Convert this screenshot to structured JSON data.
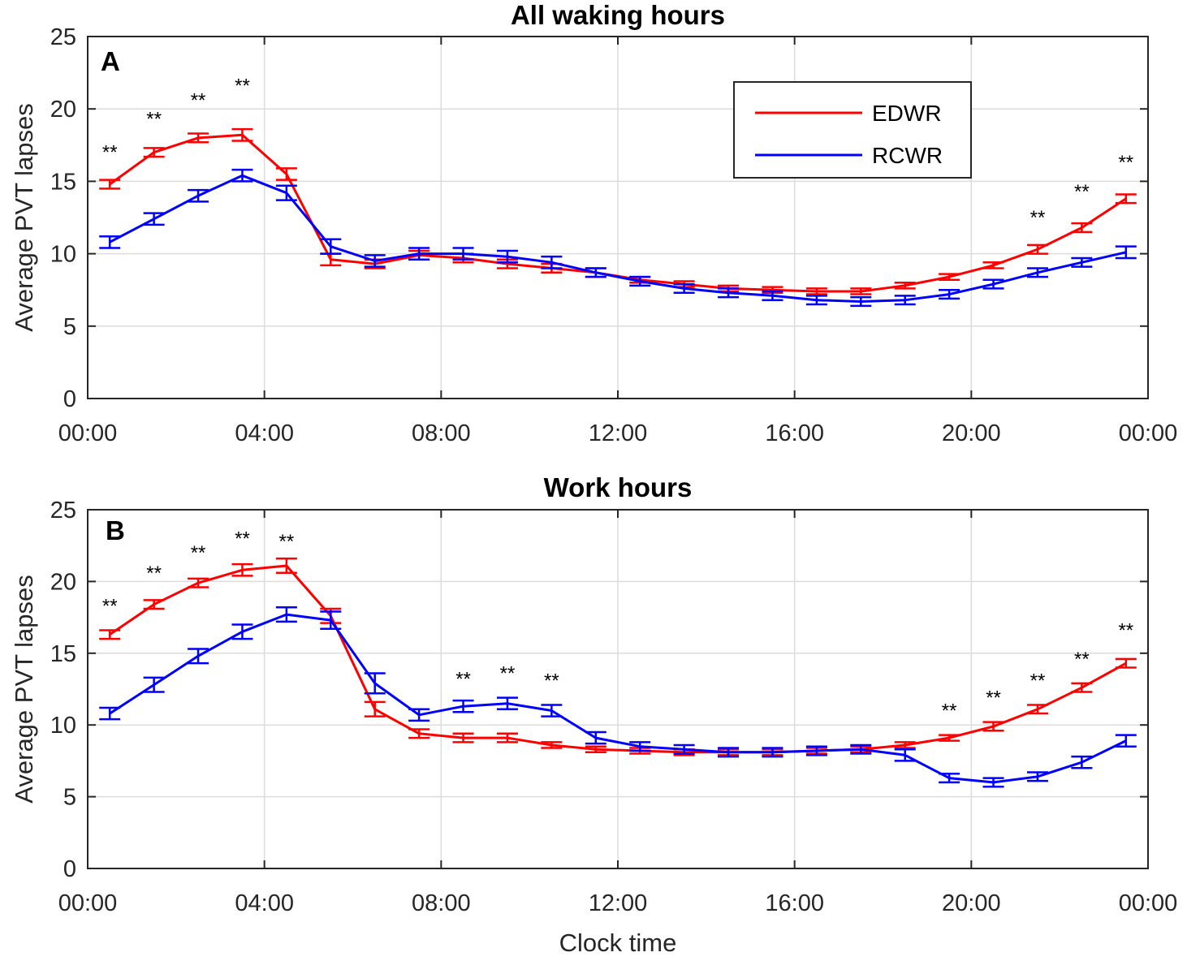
{
  "chart_data": [
    {
      "type": "line",
      "title": "All waking hours",
      "panel_label": "A",
      "ylabel": "Average PVT lapses",
      "xlabel": "",
      "ylim": [
        0,
        25
      ],
      "yticks": [
        0,
        5,
        10,
        15,
        20,
        25
      ],
      "xlim": [
        0,
        24
      ],
      "xticks": [
        0,
        4,
        8,
        12,
        16,
        20,
        24
      ],
      "xtick_labels": [
        "00:00",
        "04:00",
        "08:00",
        "12:00",
        "16:00",
        "20:00",
        "00:00"
      ],
      "grid": true,
      "legend_position": "top-right",
      "x": [
        0.5,
        1.5,
        2.5,
        3.5,
        4.5,
        5.5,
        6.5,
        7.5,
        8.5,
        9.5,
        10.5,
        11.5,
        12.5,
        13.5,
        14.5,
        15.5,
        16.5,
        17.5,
        18.5,
        19.5,
        20.5,
        21.5,
        22.5,
        23.5
      ],
      "series": [
        {
          "name": "EDWR",
          "color": "#ff0000",
          "values": [
            14.8,
            17.0,
            18.0,
            18.2,
            15.5,
            9.6,
            9.3,
            9.9,
            9.7,
            9.3,
            9.0,
            8.7,
            8.2,
            7.9,
            7.6,
            7.5,
            7.4,
            7.4,
            7.8,
            8.4,
            9.2,
            10.3,
            11.8,
            13.8
          ],
          "errors": [
            0.3,
            0.3,
            0.3,
            0.4,
            0.4,
            0.4,
            0.3,
            0.3,
            0.3,
            0.3,
            0.3,
            0.3,
            0.2,
            0.2,
            0.2,
            0.2,
            0.2,
            0.2,
            0.2,
            0.2,
            0.2,
            0.3,
            0.3,
            0.3
          ]
        },
        {
          "name": "RCWR",
          "color": "#0000ff",
          "values": [
            10.8,
            12.4,
            14.0,
            15.4,
            14.2,
            10.5,
            9.5,
            10.0,
            10.0,
            9.8,
            9.4,
            8.7,
            8.1,
            7.6,
            7.3,
            7.1,
            6.8,
            6.7,
            6.8,
            7.2,
            7.9,
            8.7,
            9.4,
            10.1
          ],
          "errors": [
            0.4,
            0.4,
            0.4,
            0.4,
            0.5,
            0.5,
            0.4,
            0.4,
            0.4,
            0.4,
            0.4,
            0.3,
            0.3,
            0.3,
            0.3,
            0.3,
            0.3,
            0.3,
            0.3,
            0.3,
            0.3,
            0.3,
            0.3,
            0.4
          ]
        }
      ],
      "annotations": [
        {
          "x": 0.5,
          "y": 17.0,
          "text": "**"
        },
        {
          "x": 1.5,
          "y": 19.3,
          "text": "**"
        },
        {
          "x": 2.5,
          "y": 20.6,
          "text": "**"
        },
        {
          "x": 3.5,
          "y": 21.6,
          "text": "**"
        },
        {
          "x": 21.5,
          "y": 12.5,
          "text": "**"
        },
        {
          "x": 22.5,
          "y": 14.3,
          "text": "**"
        },
        {
          "x": 23.5,
          "y": 16.3,
          "text": "**"
        }
      ]
    },
    {
      "type": "line",
      "title": "Work hours",
      "panel_label": "B",
      "ylabel": "Average PVT lapses",
      "xlabel": "Clock time",
      "ylim": [
        0,
        25
      ],
      "yticks": [
        0,
        5,
        10,
        15,
        20,
        25
      ],
      "xlim": [
        0,
        24
      ],
      "xticks": [
        0,
        4,
        8,
        12,
        16,
        20,
        24
      ],
      "xtick_labels": [
        "00:00",
        "04:00",
        "08:00",
        "12:00",
        "16:00",
        "20:00",
        "00:00"
      ],
      "grid": true,
      "x": [
        0.5,
        1.5,
        2.5,
        3.5,
        4.5,
        5.5,
        6.5,
        7.5,
        8.5,
        9.5,
        10.5,
        11.5,
        12.5,
        13.5,
        14.5,
        15.5,
        16.5,
        17.5,
        18.5,
        19.5,
        20.5,
        21.5,
        22.5,
        23.5
      ],
      "series": [
        {
          "name": "EDWR",
          "color": "#ff0000",
          "values": [
            16.3,
            18.4,
            19.9,
            20.8,
            21.1,
            17.6,
            11.1,
            9.4,
            9.1,
            9.1,
            8.6,
            8.3,
            8.2,
            8.1,
            8.1,
            8.1,
            8.2,
            8.3,
            8.6,
            9.1,
            9.9,
            11.1,
            12.6,
            14.3
          ],
          "errors": [
            0.3,
            0.3,
            0.3,
            0.4,
            0.5,
            0.5,
            0.5,
            0.3,
            0.3,
            0.3,
            0.2,
            0.2,
            0.2,
            0.2,
            0.2,
            0.2,
            0.2,
            0.2,
            0.2,
            0.2,
            0.3,
            0.3,
            0.3,
            0.3
          ]
        },
        {
          "name": "RCWR",
          "color": "#0000ff",
          "values": [
            10.8,
            12.8,
            14.8,
            16.5,
            17.7,
            17.3,
            12.9,
            10.7,
            11.3,
            11.5,
            11.0,
            9.1,
            8.5,
            8.3,
            8.1,
            8.1,
            8.2,
            8.3,
            7.9,
            6.3,
            6.0,
            6.4,
            7.4,
            8.9
          ],
          "errors": [
            0.4,
            0.5,
            0.5,
            0.5,
            0.5,
            0.6,
            0.7,
            0.4,
            0.4,
            0.4,
            0.4,
            0.4,
            0.3,
            0.3,
            0.3,
            0.3,
            0.3,
            0.3,
            0.4,
            0.3,
            0.3,
            0.3,
            0.4,
            0.4
          ]
        }
      ],
      "annotations": [
        {
          "x": 0.5,
          "y": 18.3,
          "text": "**"
        },
        {
          "x": 1.5,
          "y": 20.6,
          "text": "**"
        },
        {
          "x": 2.5,
          "y": 22.0,
          "text": "**"
        },
        {
          "x": 3.5,
          "y": 23.0,
          "text": "**"
        },
        {
          "x": 4.5,
          "y": 22.8,
          "text": "**"
        },
        {
          "x": 8.5,
          "y": 13.2,
          "text": "**"
        },
        {
          "x": 9.5,
          "y": 13.6,
          "text": "**"
        },
        {
          "x": 10.5,
          "y": 13.1,
          "text": "**"
        },
        {
          "x": 19.5,
          "y": 11.0,
          "text": "**"
        },
        {
          "x": 20.5,
          "y": 11.9,
          "text": "**"
        },
        {
          "x": 21.5,
          "y": 13.1,
          "text": "**"
        },
        {
          "x": 22.5,
          "y": 14.6,
          "text": "**"
        },
        {
          "x": 23.5,
          "y": 16.6,
          "text": "**"
        }
      ]
    }
  ]
}
